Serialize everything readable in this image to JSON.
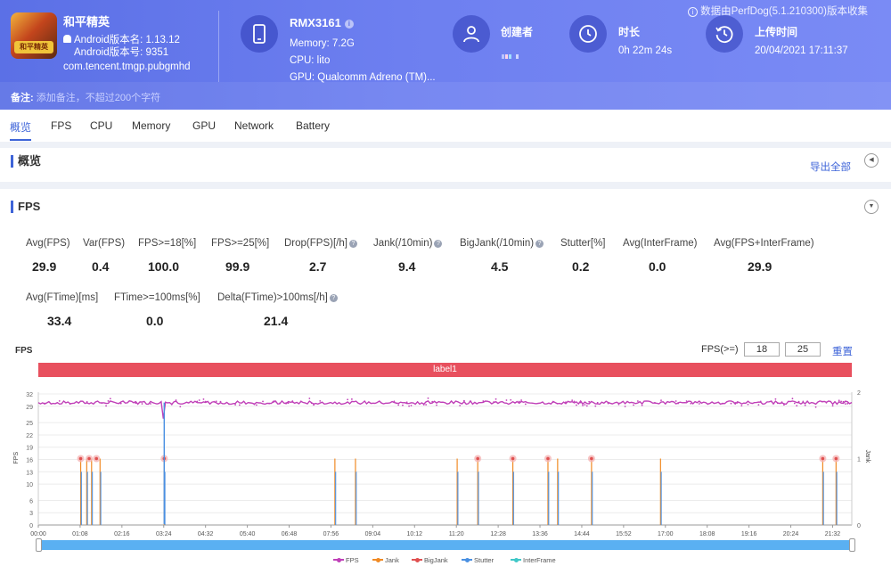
{
  "header": {
    "notice": "数据由PerfDog(5.1.210300)版本收集",
    "app": {
      "name": "和平精英",
      "version_name": "Android版本名: 1.13.12",
      "version_code": "Android版本号: 9351",
      "package": "com.tencent.tmgp.pubgmhd",
      "icon_text": "和平精英"
    },
    "device": {
      "model": "RMX3161",
      "memory": "Memory: 7.2G",
      "cpu": "CPU: lito",
      "gpu": "GPU: Qualcomm Adreno (TM)..."
    },
    "creator": {
      "label": "创建者"
    },
    "duration": {
      "label": "时长",
      "value": "0h 22m 24s"
    },
    "upload": {
      "label": "上传时间",
      "value": "20/04/2021 17:11:37"
    },
    "remark": {
      "label": "备注:",
      "placeholder": "添加备注，不超过200个字符"
    }
  },
  "tabs": [
    "概览",
    "FPS",
    "CPU",
    "Memory",
    "GPU",
    "Network",
    "Battery"
  ],
  "overview": {
    "title": "概览",
    "export_label": "导出全部"
  },
  "fps_panel": {
    "title": "FPS",
    "metrics_row1": [
      {
        "label": "Avg(FPS)",
        "value": "29.9",
        "help": false
      },
      {
        "label": "Var(FPS)",
        "value": "0.4",
        "help": false
      },
      {
        "label": "FPS>=18[%]",
        "value": "100.0",
        "help": false
      },
      {
        "label": "FPS>=25[%]",
        "value": "99.9",
        "help": false
      },
      {
        "label": "Drop(FPS)[/h]",
        "value": "2.7",
        "help": true
      },
      {
        "label": "Jank(/10min)",
        "value": "9.4",
        "help": true
      },
      {
        "label": "BigJank(/10min)",
        "value": "4.5",
        "help": true
      },
      {
        "label": "Stutter[%]",
        "value": "0.2",
        "help": false
      },
      {
        "label": "Avg(InterFrame)",
        "value": "0.0",
        "help": false
      },
      {
        "label": "Avg(FPS+InterFrame)",
        "value": "29.9",
        "help": false
      }
    ],
    "metrics_row2": [
      {
        "label": "Avg(FTime)[ms]",
        "value": "33.4",
        "help": false
      },
      {
        "label": "FTime>=100ms[%]",
        "value": "0.0",
        "help": false
      },
      {
        "label": "Delta(FTime)>100ms[/h]",
        "value": "21.4",
        "help": true
      }
    ],
    "chart_title": "FPS",
    "filter_label": "FPS(>=)",
    "filter_values": [
      "18",
      "25"
    ],
    "reset_label": "重置",
    "label_bar": "label1"
  },
  "chart_data": {
    "type": "line",
    "title": "FPS",
    "xlabel": "",
    "ylabel": "FPS",
    "y2label": "Jank",
    "ylim": [
      0,
      32
    ],
    "y2lim": [
      0,
      2
    ],
    "y_ticks": [
      0,
      3,
      6,
      10,
      13,
      16,
      19,
      22,
      25,
      29,
      32
    ],
    "y2_ticks": [
      0,
      1,
      2
    ],
    "x_ticks": [
      "00:00",
      "01:08",
      "02:16",
      "03:24",
      "04:32",
      "05:40",
      "06:48",
      "07:56",
      "09:04",
      "10:12",
      "11:20",
      "12:28",
      "13:36",
      "14:44",
      "15:52",
      "17:00",
      "18:08",
      "19:16",
      "20:24",
      "21:32"
    ],
    "x_unit": "seconds",
    "x_range": [
      0,
      1344
    ],
    "series": [
      {
        "name": "FPS",
        "color": "#c040b8",
        "baseline": 29.9,
        "spike_at": 208,
        "spike_value": 26
      },
      {
        "name": "Jank",
        "color": "#f08a24",
        "values_at": [
          70,
          80,
          88,
          102,
          208,
          490,
          524,
          692,
          726,
          784,
          842,
          858,
          914,
          1028,
          1296,
          1318
        ]
      },
      {
        "name": "BigJank",
        "color": "#e05050",
        "values_at": [
          70,
          84,
          96,
          208,
          726,
          784,
          842,
          914,
          1296,
          1318
        ]
      },
      {
        "name": "Stutter",
        "color": "#4a90e2"
      },
      {
        "name": "InterFrame",
        "color": "#40c8c8"
      }
    ],
    "legend": "bottom-center"
  },
  "colors": {
    "accent": "#3e64d8",
    "header": "#6d7ff0",
    "label_bar": "#e8505e",
    "scroll": "#5ab0f2"
  }
}
